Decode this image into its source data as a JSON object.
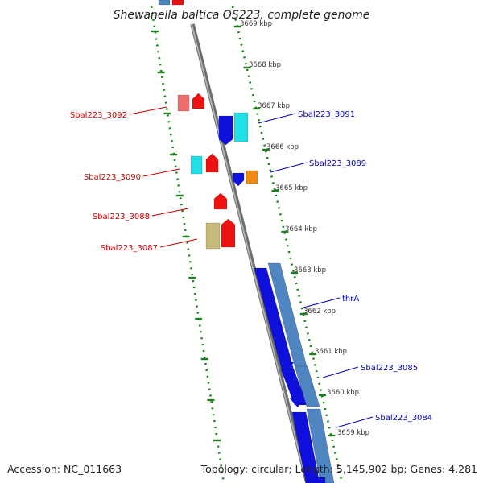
{
  "title": "Shewanella baltica OS223, complete genome",
  "footer": {
    "accession": "Accession: NC_011663",
    "summary": "Topology: circular; Length: 5,145,902 bp; Genes: 4,281"
  },
  "ticks": [
    "3669 kbp",
    "3668 kbp",
    "3667 kbp",
    "3666 kbp",
    "3665 kbp",
    "3664 kbp",
    "3663 kbp",
    "3662 kbp",
    "3661 kbp",
    "3660 kbp",
    "3659 kbp"
  ],
  "colors": {
    "backbone": "#8a8a8a",
    "track_dots": "#1e7f1e",
    "reverse_label": "#cc0000",
    "forward_label": "#0000bb",
    "red": "#ee1111",
    "pink": "#ee6e6e",
    "cyan": "#22e0e6",
    "blue": "#1010dd",
    "steel": "#4f86c2",
    "orange": "#f08a10",
    "khaki": "#c6bb7a"
  },
  "genes": {
    "reverse": [
      {
        "name": "Sbal223_3092",
        "label": "Sbal223_3092"
      },
      {
        "name": "Sbal223_3090",
        "label": "Sbal223_3090"
      },
      {
        "name": "Sbal223_3088",
        "label": "Sbal223_3088"
      },
      {
        "name": "Sbal223_3087",
        "label": "Sbal223_3087"
      }
    ],
    "forward": [
      {
        "name": "Sbal223_3091",
        "label": "Sbal223_3091"
      },
      {
        "name": "Sbal223_3089",
        "label": "Sbal223_3089"
      },
      {
        "name": "thrA",
        "label": "thrA"
      },
      {
        "name": "Sbal223_3085",
        "label": "Sbal223_3085"
      },
      {
        "name": "Sbal223_3084",
        "label": "Sbal223_3084"
      }
    ]
  }
}
